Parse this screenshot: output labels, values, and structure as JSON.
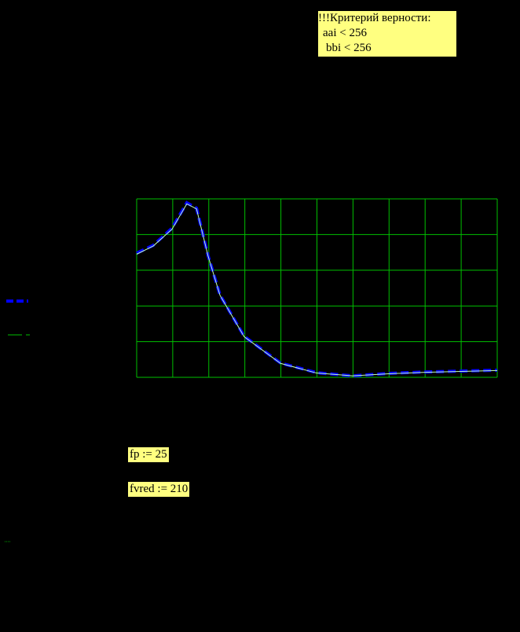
{
  "notes": {
    "criterion": {
      "title": "!!!Критерий верности:",
      "lines": [
        "aai < 256",
        "bbi < 256"
      ]
    },
    "fp": "fp := 25",
    "fvred": "fvred := 210"
  },
  "chart_data": {
    "type": "line",
    "xlim": [
      0,
      10
    ],
    "ylim": [
      0,
      5
    ],
    "xticks": [
      0,
      1,
      2,
      3,
      4,
      5,
      6,
      7,
      8,
      9,
      10
    ],
    "yticks": [
      0,
      1,
      2,
      3,
      4,
      5
    ],
    "grid": true,
    "grid_color": "#00c000",
    "x": [
      0,
      0.46,
      0.98,
      1.39,
      1.66,
      1.98,
      2.31,
      2.98,
      3.99,
      4.99,
      5.99,
      6.99,
      8,
      10
    ],
    "series": [
      {
        "color": "#0000ff",
        "dash": true,
        "values": [
          3.48,
          3.7,
          4.18,
          4.89,
          4.74,
          3.41,
          2.31,
          1.15,
          0.4,
          0.13,
          0.04,
          0.11,
          0.15,
          0.2
        ]
      },
      {
        "color": "#c0ffc0",
        "dash": false,
        "values": [
          3.45,
          3.68,
          4.15,
          4.86,
          4.72,
          3.4,
          2.3,
          1.14,
          0.39,
          0.12,
          0.04,
          0.1,
          0.14,
          0.19
        ]
      }
    ]
  }
}
